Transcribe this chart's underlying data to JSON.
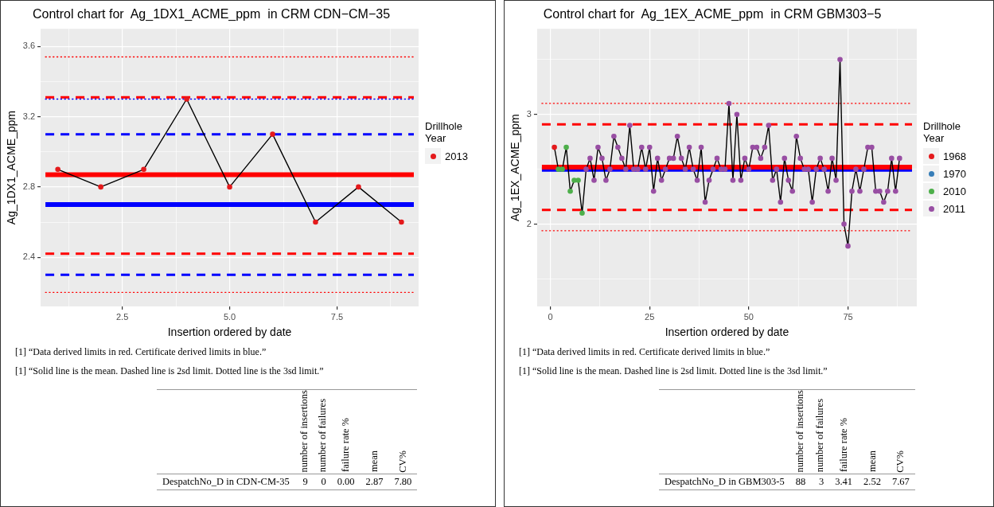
{
  "chart_data": [
    {
      "type": "scatter",
      "title": "Control chart for  Ag_1DX1_ACME_ppm  in CRM CDN−CM−35",
      "xlabel": "Insertion ordered by date",
      "ylabel": "Ag_1DX1_ACME_ppm",
      "legend_title": "Drillhole Year",
      "legend": "right",
      "grid": true,
      "marker": "circle",
      "xlim": [
        0.6,
        9.4
      ],
      "xticks": [
        {
          "value": 1.25,
          "label": null
        },
        {
          "value": 2.5,
          "label": "2.5"
        },
        {
          "value": 3.75,
          "label": null
        },
        {
          "value": 5,
          "label": "5.0"
        },
        {
          "value": 6.25,
          "label": null
        },
        {
          "value": 7.5,
          "label": "7.5"
        },
        {
          "value": 8.75,
          "label": null
        }
      ],
      "ylim": [
        2.12,
        3.7
      ],
      "yticks": [
        2.4,
        {
          "value": 2.6,
          "label": null
        },
        2.8,
        {
          "value": 3.0,
          "label": null
        },
        3.2,
        {
          "value": 3.4,
          "label": null
        },
        3.6
      ],
      "series": [
        {
          "type": "line",
          "marker": "none",
          "color": "#000000",
          "x": [
            1,
            2,
            3,
            4,
            5,
            6,
            7,
            8,
            9
          ],
          "values": [
            2.9,
            2.8,
            2.9,
            3.3,
            2.8,
            3.1,
            2.6,
            2.8,
            2.6
          ]
        },
        {
          "name": "2013",
          "color": "#e41a1c",
          "x": [
            1,
            2,
            3,
            4,
            5,
            6,
            7,
            8,
            9
          ],
          "values": [
            2.9,
            2.8,
            2.9,
            3.3,
            2.8,
            3.1,
            2.6,
            2.8,
            2.6
          ]
        }
      ],
      "ref_lines": [
        {
          "axis": "y",
          "value": 3.54,
          "color": "#ff0000",
          "line_style": "dotted"
        },
        {
          "axis": "y",
          "value": 3.31,
          "color": "#ff0000",
          "line_style": "dashed"
        },
        {
          "axis": "y",
          "value": 3.3,
          "color": "#0000ff",
          "line_style": "dotted"
        },
        {
          "axis": "y",
          "value": 3.1,
          "color": "#0000ff",
          "line_style": "dashed"
        },
        {
          "axis": "y",
          "value": 2.87,
          "color": "#ff0000",
          "line_style": "solid"
        },
        {
          "axis": "y",
          "value": 2.7,
          "color": "#0000ff",
          "line_style": "solid"
        },
        {
          "axis": "y",
          "value": 2.42,
          "color": "#ff0000",
          "line_style": "dashed"
        },
        {
          "axis": "y",
          "value": 2.3,
          "color": "#0000ff",
          "line_style": "dashed"
        },
        {
          "axis": "y",
          "value": 2.2,
          "color": "#ff0000",
          "line_style": "dotted"
        }
      ],
      "annotations": [
        "[1] “Data derived limits in red. Certificate derived limits in blue.”",
        "[1] “Solid line is the mean. Dashed line is 2sd limit. Dotted line is the 3sd limit.”"
      ]
    },
    {
      "type": "other",
      "categories": [
        "number of insertions",
        "number of failures",
        "failure rate %",
        "mean",
        "CV%"
      ],
      "y_categories": [
        "DespatchNo_D in CDN-CM-35"
      ],
      "cell_labels": [
        [
          "9",
          "0",
          "0.00",
          "2.87",
          "7.80"
        ]
      ]
    },
    {
      "type": "scatter",
      "title": "Control chart for  Ag_1EX_ACME_ppm  in CRM GBM303−5",
      "xlabel": "Insertion ordered by date",
      "ylabel": "Ag_1EX_ACME_ppm",
      "legend_title": "Drillhole Year",
      "legend": "right",
      "grid": true,
      "marker": "circle",
      "xlim": [
        -3.35,
        92.35
      ],
      "xticks": [
        0,
        {
          "value": 12.5,
          "label": null
        },
        25,
        {
          "value": 37.5,
          "label": null
        },
        50,
        {
          "value": 62.5,
          "label": null
        },
        75,
        {
          "value": 87.5,
          "label": null
        }
      ],
      "ylim": [
        1.25,
        3.78
      ],
      "yticks": [
        {
          "value": 1.5,
          "label": null
        },
        2,
        {
          "value": 2.5,
          "label": null
        },
        3,
        {
          "value": 3.5,
          "label": null
        }
      ],
      "series": [
        {
          "type": "line",
          "marker": "none",
          "color": "#000000",
          "x": [
            1,
            2,
            3,
            4,
            5,
            6,
            7,
            8,
            9,
            10,
            11,
            12,
            13,
            14,
            15,
            16,
            17,
            18,
            19,
            20,
            21,
            22,
            23,
            24,
            25,
            26,
            27,
            28,
            29,
            30,
            31,
            32,
            33,
            34,
            35,
            36,
            37,
            38,
            39,
            40,
            41,
            42,
            43,
            44,
            45,
            46,
            47,
            48,
            49,
            50,
            51,
            52,
            53,
            54,
            55,
            56,
            57,
            58,
            59,
            60,
            61,
            62,
            63,
            64,
            65,
            66,
            67,
            68,
            69,
            70,
            71,
            72,
            73,
            74,
            75,
            76,
            77,
            78,
            79,
            80,
            81,
            82,
            83,
            84,
            85,
            86,
            87,
            88
          ],
          "values": [
            2.7,
            2.5,
            2.5,
            2.7,
            2.3,
            2.4,
            2.4,
            2.1,
            2.5,
            2.6,
            2.4,
            2.7,
            2.6,
            2.4,
            2.5,
            2.8,
            2.7,
            2.6,
            2.5,
            2.9,
            2.5,
            2.5,
            2.7,
            2.5,
            2.7,
            2.3,
            2.6,
            2.4,
            2.5,
            2.6,
            2.6,
            2.8,
            2.6,
            2.5,
            2.7,
            2.5,
            2.4,
            2.7,
            2.2,
            2.4,
            2.5,
            2.6,
            2.5,
            2.5,
            3.1,
            2.4,
            3.0,
            2.4,
            2.6,
            2.5,
            2.7,
            2.7,
            2.6,
            2.7,
            2.9,
            2.4,
            2.5,
            2.2,
            2.6,
            2.4,
            2.3,
            2.8,
            2.6,
            2.5,
            2.5,
            2.2,
            2.5,
            2.6,
            2.5,
            2.3,
            2.6,
            2.4,
            3.5,
            2.0,
            1.8,
            2.3,
            2.5,
            2.3,
            2.5,
            2.7,
            2.7,
            2.3,
            2.3,
            2.2,
            2.3,
            2.6,
            2.3,
            2.6
          ]
        },
        {
          "name": "1968",
          "color": "#e41a1c",
          "x": [
            1
          ],
          "values": [
            2.7
          ]
        },
        {
          "name": "1970",
          "color": "#377eb8"
        },
        {
          "name": "2010",
          "color": "#4daf4a",
          "x": [
            2,
            3,
            4,
            5,
            6,
            7,
            8
          ],
          "values": [
            2.5,
            2.5,
            2.7,
            2.3,
            2.4,
            2.4,
            2.1
          ]
        },
        {
          "name": "2011",
          "color": "#984ea3",
          "x": [
            9,
            10,
            11,
            12,
            13,
            14,
            15,
            16,
            17,
            18,
            19,
            20,
            21,
            22,
            23,
            24,
            25,
            26,
            27,
            28,
            29,
            30,
            31,
            32,
            33,
            34,
            35,
            36,
            37,
            38,
            39,
            40,
            41,
            42,
            43,
            44,
            45,
            46,
            47,
            48,
            49,
            50,
            51,
            52,
            53,
            54,
            55,
            56,
            57,
            58,
            59,
            60,
            61,
            62,
            63,
            64,
            65,
            66,
            67,
            68,
            69,
            70,
            71,
            72,
            73,
            74,
            75,
            76,
            77,
            78,
            79,
            80,
            81,
            82,
            83,
            84,
            85,
            86,
            87,
            88
          ],
          "values": [
            2.5,
            2.6,
            2.4,
            2.7,
            2.6,
            2.4,
            2.5,
            2.8,
            2.7,
            2.6,
            2.5,
            2.9,
            2.5,
            2.5,
            2.7,
            2.5,
            2.7,
            2.3,
            2.6,
            2.4,
            2.5,
            2.6,
            2.6,
            2.8,
            2.6,
            2.5,
            2.7,
            2.5,
            2.4,
            2.7,
            2.2,
            2.4,
            2.5,
            2.6,
            2.5,
            2.5,
            3.1,
            2.4,
            3.0,
            2.4,
            2.6,
            2.5,
            2.7,
            2.7,
            2.6,
            2.7,
            2.9,
            2.4,
            2.5,
            2.2,
            2.6,
            2.4,
            2.3,
            2.8,
            2.6,
            2.5,
            2.5,
            2.2,
            2.5,
            2.6,
            2.5,
            2.3,
            2.6,
            2.4,
            3.5,
            2.0,
            1.8,
            2.3,
            2.5,
            2.3,
            2.5,
            2.7,
            2.7,
            2.3,
            2.3,
            2.2,
            2.3,
            2.6,
            2.3,
            2.6
          ]
        }
      ],
      "ref_lines": [
        {
          "axis": "y",
          "value": 3.1,
          "color": "#ff0000",
          "line_style": "dotted"
        },
        {
          "axis": "y",
          "value": 2.91,
          "color": "#ff0000",
          "line_style": "dashed"
        },
        {
          "axis": "y",
          "value": 2.5,
          "color": "#0000ff",
          "line_style": "solid"
        },
        {
          "axis": "y",
          "value": 2.52,
          "color": "#ff0000",
          "line_style": "solid"
        },
        {
          "axis": "y",
          "value": 2.13,
          "color": "#ff0000",
          "line_style": "dashed"
        },
        {
          "axis": "y",
          "value": 1.94,
          "color": "#ff0000",
          "line_style": "dotted"
        }
      ],
      "annotations": [
        "[1] “Data derived limits in red. Certificate derived limits in blue.”",
        "[1] “Solid line is the mean. Dashed line is 2sd limit. Dotted line is the 3sd limit.”"
      ]
    },
    {
      "type": "other",
      "categories": [
        "number of insertions",
        "number of failures",
        "failure rate %",
        "mean",
        "CV%"
      ],
      "y_categories": [
        "DespatchNo_D in GBM303-5"
      ],
      "cell_labels": [
        [
          "88",
          "3",
          "3.41",
          "2.52",
          "7.67"
        ]
      ]
    }
  ]
}
